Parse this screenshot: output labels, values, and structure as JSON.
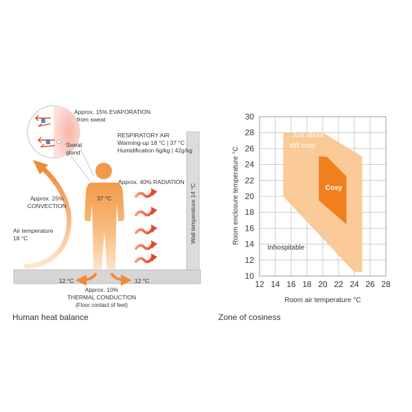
{
  "heat_balance": {
    "caption": "Human heat balance",
    "evaporation": {
      "line1": "Approx. 15% EVAPORATION",
      "line2": "from sweat"
    },
    "sweat_gland": {
      "line1": "Sweat",
      "line2": "gland"
    },
    "respiratory": {
      "title": "RESPIRATORY AIR",
      "line1": "Warming-up 18 °C | 37 °C",
      "line2": "Humidification 6g/kg | 42g/kg"
    },
    "radiation": "Approx. 40% RADIATION",
    "body_temp": "37 °C",
    "convection": {
      "line1": "Approx. 25%",
      "line2": "CONVECTION"
    },
    "air_temp": {
      "line1": "Air temperature",
      "line2": "18 °C"
    },
    "wall_temp": "Wall temperature 14 °C",
    "floor_left": "12 °C",
    "floor_right": "12 °C",
    "conduction": {
      "line1": "Approx. 10%",
      "line2": "THERMAL CONDUCTION",
      "line3": "(Floor contact of feet)"
    },
    "colors": {
      "body": "#f4a259",
      "body_light": "#fbd9b4",
      "radiation_arrow": "#e85a3c",
      "convection_arrow": "#f2a35c",
      "wall": "#d9d9d9",
      "sweat_zone": "#f5b4aa",
      "water": "#4a90c8"
    }
  },
  "cosiness": {
    "caption": "Zone of cosiness",
    "chart_data": {
      "type": "area",
      "xlabel": "Room air temperature °C",
      "ylabel": "Room enclosure temperature °C",
      "xlim": [
        12,
        28
      ],
      "ylim": [
        10,
        30
      ],
      "x_ticks": [
        12,
        14,
        16,
        18,
        20,
        22,
        24,
        26,
        28
      ],
      "y_ticks": [
        10,
        12,
        14,
        16,
        18,
        20,
        22,
        24,
        26,
        28,
        30
      ],
      "grid": true,
      "zones": [
        {
          "name": "Just about still cosy",
          "label_line1": "Just about",
          "label_line2": "still cosy",
          "color": "#f9c48e",
          "polygon": [
            [
              15,
              28
            ],
            [
              20,
              28
            ],
            [
              25,
              25
            ],
            [
              25,
              10.5
            ],
            [
              24,
              10.5
            ],
            [
              15,
              20
            ]
          ]
        },
        {
          "name": "Cosy",
          "label": "Cosy",
          "color": "#f07f1e",
          "polygon": [
            [
              19.5,
              25
            ],
            [
              20.5,
              25
            ],
            [
              23,
              22.5
            ],
            [
              23,
              16.5
            ],
            [
              19.5,
              19.5
            ]
          ]
        }
      ],
      "annotations": [
        {
          "text": "Inhospitable",
          "x": 13,
          "y": 13.3
        }
      ]
    }
  }
}
